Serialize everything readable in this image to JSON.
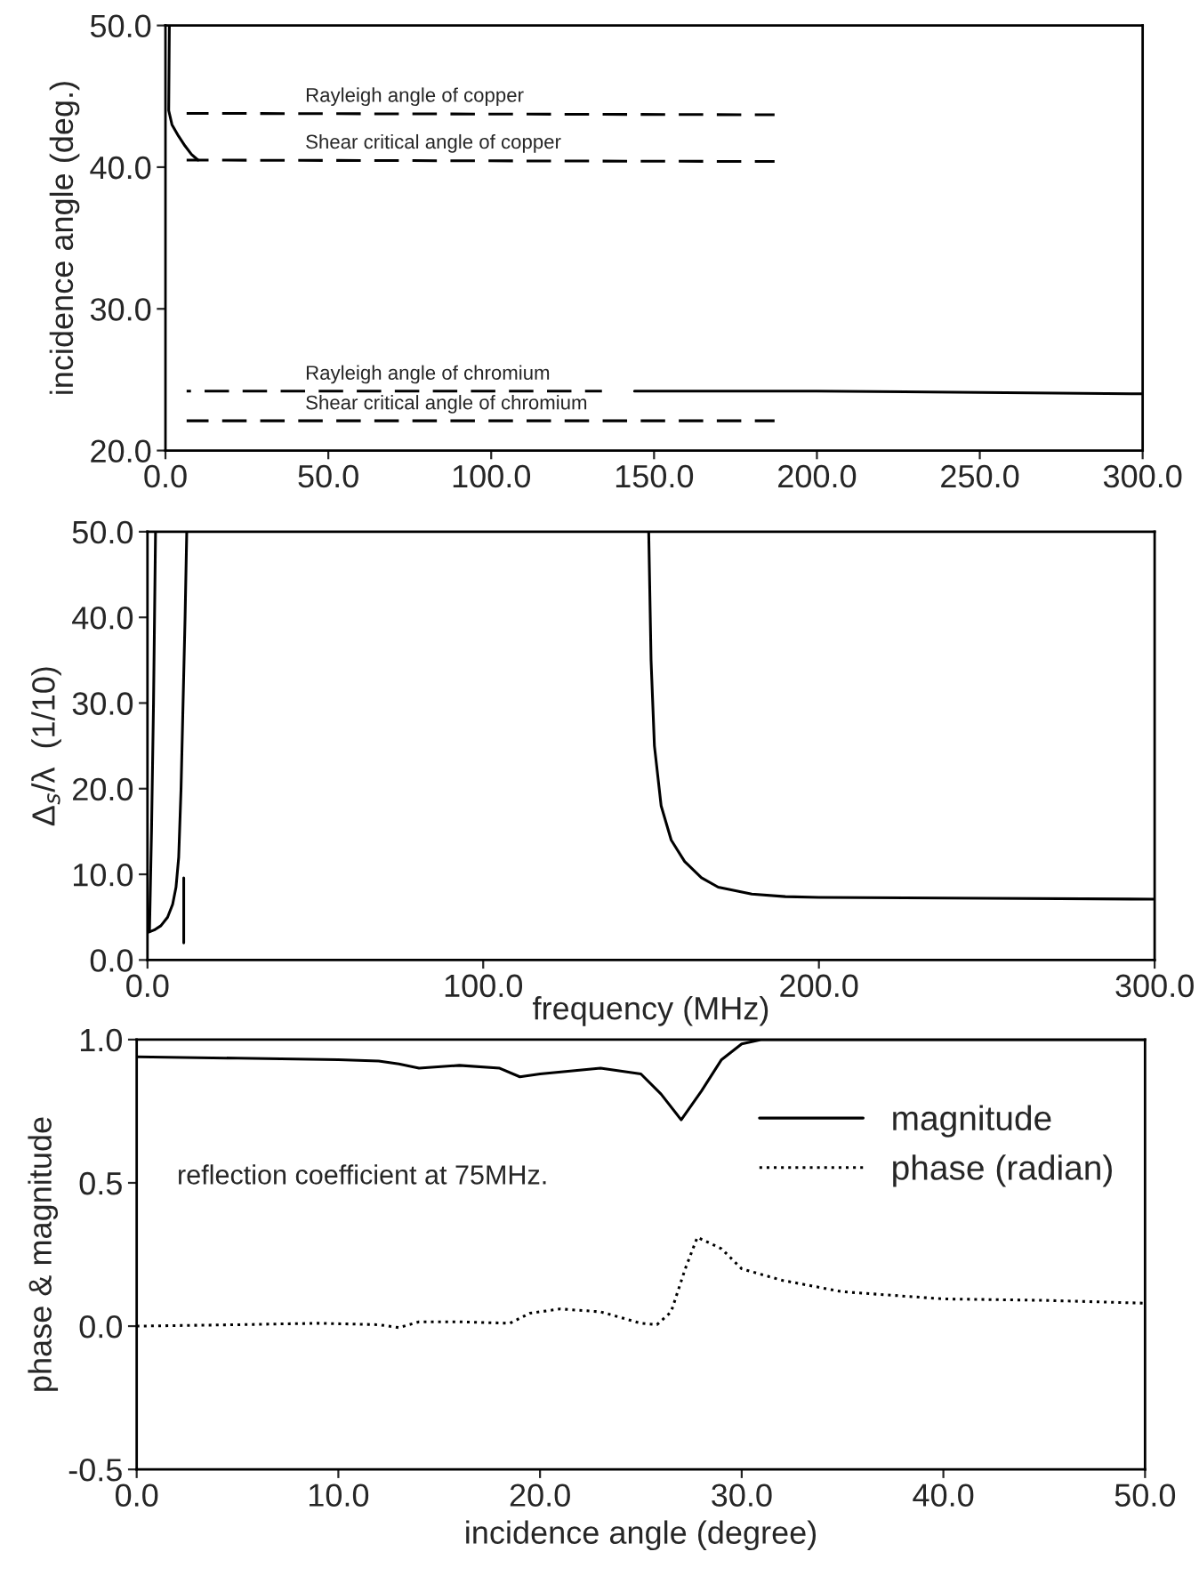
{
  "chart_data": [
    {
      "type": "line",
      "ylabel": "incidence angle (deg.)",
      "xlim": [
        0,
        300
      ],
      "ylim": [
        20,
        50
      ],
      "xticks": [
        {
          "value": 0,
          "label": "0.0"
        },
        {
          "value": 50,
          "label": "50.0"
        },
        {
          "value": 100,
          "label": "100.0"
        },
        {
          "value": 150,
          "label": "150.0"
        },
        {
          "value": 200,
          "label": "200.0"
        },
        {
          "value": 250,
          "label": "250.0"
        },
        {
          "value": 300,
          "label": "300.0"
        }
      ],
      "yticks": [
        {
          "value": 20,
          "label": "20.0"
        },
        {
          "value": 30,
          "label": "30.0"
        },
        {
          "value": 40,
          "label": "40.0"
        },
        {
          "value": 50,
          "label": "50.0"
        }
      ],
      "grid": false,
      "legend": false,
      "series": [
        {
          "color": "#000000",
          "line_style": "solid",
          "x": [
            1.2,
            1.0,
            2,
            4,
            6,
            8,
            10
          ],
          "values": [
            50,
            44,
            43,
            42.2,
            41.5,
            40.9,
            40.5
          ]
        },
        {
          "color": "#000000",
          "line_style": "solid",
          "x": [
            144,
            200,
            250,
            300
          ],
          "values": [
            24.2,
            24.2,
            24.1,
            24.0
          ]
        },
        {
          "color": "#000000",
          "line_style": "dashed",
          "x": [
            6.5,
            187
          ],
          "values": [
            43.8,
            43.7
          ]
        },
        {
          "color": "#000000",
          "line_style": "dashed",
          "x": [
            6.5,
            187
          ],
          "values": [
            40.5,
            40.4
          ]
        },
        {
          "color": "#000000",
          "line_style": "dashed",
          "x": [
            6.5,
            134
          ],
          "values": [
            24.2,
            24.2
          ]
        },
        {
          "color": "#000000",
          "line_style": "dashed",
          "x": [
            6.5,
            187
          ],
          "values": [
            22.1,
            22.1
          ]
        }
      ],
      "annotations": [
        {
          "text": "Rayleigh angle of copper",
          "y": 43.8
        },
        {
          "text": "Shear critical angle of copper",
          "y": 40.5
        },
        {
          "text": "Rayleigh angle of chromium",
          "y": 24.2
        },
        {
          "text": "Shear critical angle of chromium",
          "y": 22.1
        }
      ]
    },
    {
      "type": "line",
      "xlabel": "frequency (MHz)",
      "ylabel": "Δ$_{s}$/λ  (1/10)",
      "xlim": [
        0,
        300
      ],
      "ylim": [
        0,
        50
      ],
      "xticks": [
        {
          "value": 0,
          "label": "0.0"
        },
        {
          "value": 100,
          "label": "100.0"
        },
        {
          "value": 200,
          "label": "200.0"
        },
        {
          "value": 300,
          "label": "300.0"
        }
      ],
      "yticks": [
        {
          "value": 0,
          "label": "0.0"
        },
        {
          "value": 10,
          "label": "10.0"
        },
        {
          "value": 20,
          "label": "20.0"
        },
        {
          "value": 30,
          "label": "30.0"
        },
        {
          "value": 40,
          "label": "40.0"
        },
        {
          "value": 50,
          "label": "50.0"
        }
      ],
      "grid": false,
      "legend": false,
      "series": [
        {
          "color": "#000000",
          "line_style": "solid",
          "x": [
            0,
            2,
            4,
            6,
            7.5,
            8.5,
            9.3,
            10,
            10.6,
            11.2,
            11.7
          ],
          "values": [
            3.2,
            3.5,
            4.0,
            5.0,
            6.5,
            8.5,
            12,
            20,
            30,
            40,
            50
          ]
        },
        {
          "color": "#000000",
          "line_style": "solid",
          "x": [
            10.8,
            10.8
          ],
          "values": [
            2.0,
            9.6
          ]
        },
        {
          "color": "#000000",
          "line_style": "solid",
          "x": [
            0.6,
            1.2,
            1.8,
            2.4
          ],
          "values": [
            3.3,
            15,
            30,
            50
          ]
        },
        {
          "color": "#000000",
          "line_style": "solid",
          "x": [
            149.3,
            150,
            151,
            153,
            156,
            160,
            165,
            170,
            180,
            190,
            200,
            250,
            300
          ],
          "values": [
            50,
            35,
            25,
            18,
            14,
            11.5,
            9.6,
            8.5,
            7.7,
            7.4,
            7.3,
            7.2,
            7.1
          ]
        }
      ]
    },
    {
      "type": "line",
      "xlabel": "incidence angle (degree)",
      "ylabel": "phase & magnitude",
      "xlim": [
        0,
        50
      ],
      "ylim": [
        -0.5,
        1.0
      ],
      "xticks": [
        {
          "value": 0,
          "label": "0.0"
        },
        {
          "value": 10,
          "label": "10.0"
        },
        {
          "value": 20,
          "label": "20.0"
        },
        {
          "value": 30,
          "label": "30.0"
        },
        {
          "value": 40,
          "label": "40.0"
        },
        {
          "value": 50,
          "label": "50.0"
        }
      ],
      "yticks": [
        {
          "value": -0.5,
          "label": "-0.5"
        },
        {
          "value": 0,
          "label": "0.0"
        },
        {
          "value": 0.5,
          "label": "0.5"
        },
        {
          "value": 1.0,
          "label": "1.0"
        }
      ],
      "grid": false,
      "legend": "top right",
      "series": [
        {
          "name": "magnitude",
          "color": "#000000",
          "line_style": "solid",
          "x": [
            0,
            5,
            10,
            12,
            13,
            14,
            16,
            18,
            19,
            20,
            23,
            25,
            26,
            27,
            28,
            29,
            30,
            31,
            50
          ],
          "values": [
            0.94,
            0.935,
            0.93,
            0.925,
            0.915,
            0.9,
            0.91,
            0.9,
            0.87,
            0.88,
            0.9,
            0.88,
            0.81,
            0.72,
            0.82,
            0.93,
            0.985,
            1.0,
            1.0
          ]
        },
        {
          "name": "phase (radian)",
          "color": "#000000",
          "line_style": "dotted",
          "x": [
            0,
            5,
            9,
            12,
            13,
            14,
            16,
            18.5,
            19.5,
            21,
            23,
            25,
            25.8,
            26.5,
            27.2,
            27.8,
            29,
            30,
            32,
            35,
            40,
            45,
            50
          ],
          "values": [
            0,
            0.005,
            0.01,
            0.005,
            -0.005,
            0.015,
            0.015,
            0.01,
            0.045,
            0.06,
            0.05,
            0.01,
            0.005,
            0.05,
            0.2,
            0.31,
            0.27,
            0.2,
            0.16,
            0.12,
            0.095,
            0.09,
            0.08
          ]
        }
      ],
      "annotations": [
        "reflection coefficient at 75MHz."
      ]
    }
  ]
}
